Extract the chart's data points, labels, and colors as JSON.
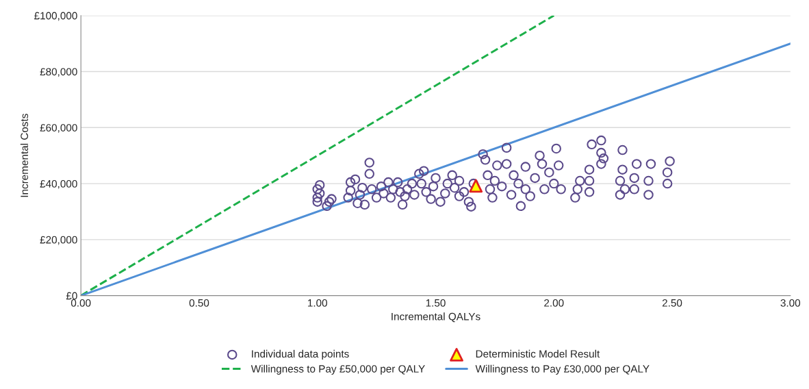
{
  "chart_data": {
    "type": "scatter",
    "xlabel": "Incremental QALYs",
    "ylabel": "Incremental Costs",
    "xlim": [
      0,
      3
    ],
    "ylim": [
      0,
      100000
    ],
    "xticks": [
      {
        "value": 0,
        "label": "0.00"
      },
      {
        "value": 0.5,
        "label": "0.50"
      },
      {
        "value": 1,
        "label": "1.00"
      },
      {
        "value": 1.5,
        "label": "1.50"
      },
      {
        "value": 2,
        "label": "2.00"
      },
      {
        "value": 2.5,
        "label": "2.50"
      },
      {
        "value": 3,
        "label": "3.00"
      }
    ],
    "yticks": [
      {
        "value": 0,
        "label": "£0"
      },
      {
        "value": 20000,
        "label": "£20,000"
      },
      {
        "value": 40000,
        "label": "£40,000"
      },
      {
        "value": 60000,
        "label": "£60,000"
      },
      {
        "value": 80000,
        "label": "£80,000"
      },
      {
        "value": 100000,
        "label": "£100,000"
      }
    ],
    "grid": "y",
    "legend": "bottom",
    "series": [
      {
        "name": "Individual data points",
        "marker": "circle",
        "color": "#5b4a8b",
        "x": [
          1.0,
          1.0,
          1.01,
          1.0,
          1.01,
          1.04,
          1.05,
          1.06,
          1.13,
          1.14,
          1.14,
          1.16,
          1.17,
          1.18,
          1.2,
          1.19,
          1.22,
          1.22,
          1.23,
          1.25,
          1.27,
          1.28,
          1.3,
          1.31,
          1.32,
          1.34,
          1.35,
          1.36,
          1.37,
          1.38,
          1.4,
          1.41,
          1.43,
          1.45,
          1.44,
          1.46,
          1.48,
          1.49,
          1.5,
          1.52,
          1.54,
          1.55,
          1.57,
          1.58,
          1.6,
          1.6,
          1.62,
          1.64,
          1.65,
          1.66,
          1.7,
          1.71,
          1.72,
          1.73,
          1.74,
          1.75,
          1.76,
          1.78,
          1.8,
          1.8,
          1.82,
          1.83,
          1.85,
          1.86,
          1.88,
          1.88,
          1.9,
          1.92,
          1.94,
          1.95,
          1.96,
          1.98,
          2.0,
          2.01,
          2.02,
          2.03,
          2.09,
          2.1,
          2.11,
          2.15,
          2.15,
          2.15,
          2.16,
          2.2,
          2.2,
          2.2,
          2.21,
          2.28,
          2.28,
          2.29,
          2.29,
          2.3,
          2.34,
          2.34,
          2.35,
          2.4,
          2.4,
          2.41,
          2.48,
          2.48,
          2.49
        ],
        "values": [
          33500,
          35000,
          36500,
          38000,
          39500,
          32000,
          33500,
          34500,
          35000,
          37500,
          40500,
          41500,
          33000,
          36000,
          32500,
          38500,
          47500,
          43500,
          38000,
          35000,
          39000,
          36500,
          40500,
          35000,
          38000,
          40500,
          37000,
          32500,
          35500,
          38000,
          40000,
          36000,
          43500,
          44500,
          40000,
          37000,
          34500,
          39000,
          42000,
          33500,
          36500,
          40000,
          43000,
          38500,
          35500,
          41000,
          37000,
          33500,
          31800,
          40000,
          50500,
          48500,
          43000,
          38000,
          35000,
          41000,
          46500,
          39000,
          52800,
          47000,
          36000,
          43000,
          40000,
          32000,
          38000,
          46000,
          35500,
          42000,
          50000,
          47000,
          38000,
          44000,
          40000,
          52500,
          46500,
          38000,
          35000,
          38000,
          41000,
          37000,
          41000,
          45000,
          54000,
          55400,
          51000,
          47000,
          49000,
          36000,
          41000,
          45000,
          52000,
          38000,
          38000,
          42000,
          47000,
          36000,
          41000,
          47000,
          40000,
          44000,
          48000
        ]
      },
      {
        "name": "Deterministic Model Result",
        "marker": "triangle",
        "color": "#ffff00",
        "x": [
          1.67
        ],
        "values": [
          39200
        ]
      },
      {
        "name": "Willingness to Pay £50,000 per QALY",
        "type": "line",
        "line_style": "dashed",
        "color": "#1db04a",
        "x": [
          0,
          2
        ],
        "values": [
          0,
          100000
        ]
      },
      {
        "name": "Willingness to Pay £30,000 per QALY",
        "type": "line",
        "line_style": "solid",
        "color": "#4f8fd6",
        "x": [
          0,
          3
        ],
        "values": [
          0,
          90000
        ]
      }
    ]
  }
}
